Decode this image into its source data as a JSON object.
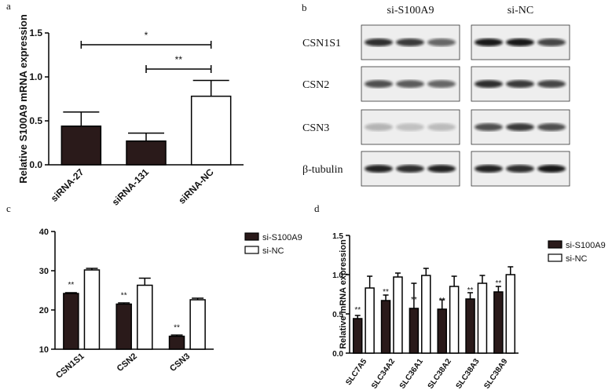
{
  "chart_data": [
    {
      "type": "bar",
      "panel": "a",
      "ylabel": "Relative S100A9 mRNA expression",
      "categories": [
        "siRNA-27",
        "siRNA-131",
        "siRNA-NC"
      ],
      "values": [
        0.44,
        0.27,
        0.78
      ],
      "errors": [
        0.16,
        0.09,
        0.18
      ],
      "colors": [
        "#2a1a1a",
        "#2a1a1a",
        "#ffffff"
      ],
      "annotations": [
        "*",
        "**"
      ],
      "ylim": [
        0,
        1.5
      ],
      "yticks": [
        {
          "value": 0,
          "label": "0.0"
        },
        {
          "value": 0.5,
          "label": "0.5"
        },
        {
          "value": 1,
          "label": "1.0"
        },
        {
          "value": 1.5,
          "label": "1.5"
        }
      ]
    },
    {
      "type": "grouped_bar",
      "panel": "c",
      "categories": [
        "CSN1S1",
        "CSN2",
        "CSN3"
      ],
      "series": [
        {
          "name": "si-S100A9",
          "color": "#2a1a1a",
          "values": [
            24.2,
            21.5,
            13.3
          ],
          "errors": [
            0.2,
            0.3,
            0.3
          ],
          "annotations": [
            "**",
            "**",
            "**"
          ]
        },
        {
          "name": "si-NC",
          "color": "#ffffff",
          "values": [
            30.2,
            26.3,
            22.6
          ],
          "errors": [
            0.4,
            1.8,
            0.4
          ]
        }
      ],
      "ylim": [
        10,
        40
      ],
      "yticks": [
        10,
        20,
        30,
        40
      ],
      "legend": "right"
    },
    {
      "type": "grouped_bar",
      "panel": "d",
      "ylabel": "Relative mRNA expression",
      "categories": [
        "SLC7A5",
        "SLC34A2",
        "SLC36A1",
        "SLC38A2",
        "SLC38A3",
        "SLC38A9"
      ],
      "series": [
        {
          "name": "si-S100A9",
          "color": "#2a1a1a",
          "values": [
            0.44,
            0.67,
            0.57,
            0.56,
            0.69,
            0.78
          ],
          "errors": [
            0.04,
            0.07,
            0.32,
            0.12,
            0.08,
            0.07
          ],
          "annotations": [
            "**",
            "**",
            "**",
            "**",
            "**",
            "**"
          ]
        },
        {
          "name": "si-NC",
          "color": "#ffffff",
          "values": [
            0.83,
            0.97,
            0.99,
            0.85,
            0.89,
            1.0
          ],
          "errors": [
            0.15,
            0.05,
            0.09,
            0.13,
            0.1,
            0.1
          ]
        }
      ],
      "ylim": [
        0,
        1.5
      ],
      "yticks": [
        {
          "value": 0,
          "label": "0.0"
        },
        {
          "value": 0.5,
          "label": "0.5"
        },
        {
          "value": 1,
          "label": "1.0"
        },
        {
          "value": 1.5,
          "label": "1.5"
        }
      ],
      "legend": "right"
    }
  ],
  "blot": {
    "panel": "b",
    "columns": [
      "si-S100A9",
      "si-NC"
    ],
    "rows": [
      "CSN1S1",
      "CSN2",
      "CSN3",
      "β-tubulin"
    ]
  }
}
